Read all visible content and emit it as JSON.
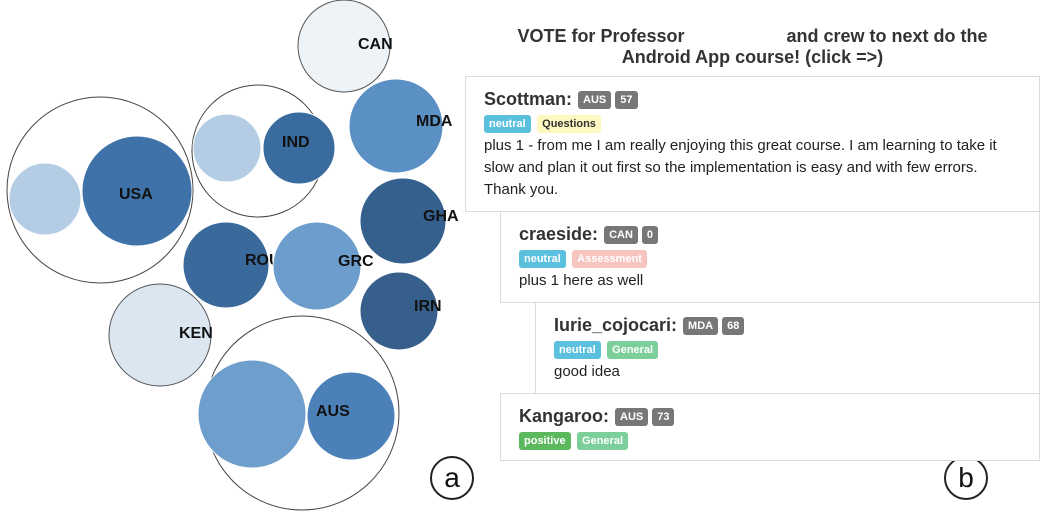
{
  "bubbles": {
    "groups": [
      {
        "label": "USA",
        "members": [
          {
            "color": "#b5cde4",
            "label": ""
          },
          {
            "color": "#3f72a8",
            "label": "USA"
          }
        ]
      },
      {
        "label": "IND",
        "members": [
          {
            "color": "#b5cde4",
            "label": ""
          },
          {
            "color": "#3a6b9f",
            "label": "IND"
          }
        ]
      },
      {
        "label": "AUS",
        "members": [
          {
            "color": "#6e9ecb",
            "label": ""
          },
          {
            "color": "#4c80b8",
            "label": "AUS"
          }
        ]
      },
      {
        "label": "CAN",
        "members": [
          {
            "color": "#eef3f8",
            "label": "CAN"
          }
        ]
      },
      {
        "label": "MDA",
        "members": [
          {
            "color": "#5b90c4",
            "label": "MDA"
          }
        ]
      },
      {
        "label": "GHA",
        "members": [
          {
            "color": "#355f8d",
            "label": "GHA"
          }
        ]
      },
      {
        "label": "ROU",
        "members": [
          {
            "color": "#3a6a9c",
            "label": "ROU"
          }
        ]
      },
      {
        "label": "GRC",
        "members": [
          {
            "color": "#6c9dcc",
            "label": "GRC"
          }
        ]
      },
      {
        "label": "IRN",
        "members": [
          {
            "color": "#365f8c",
            "label": "IRN"
          }
        ]
      },
      {
        "label": "KEN",
        "members": [
          {
            "color": "#dbe6f1",
            "label": "KEN"
          }
        ]
      }
    ]
  },
  "panel_labels": {
    "a": "a",
    "b": "b"
  },
  "thread": {
    "title_part1": "VOTE for Professor",
    "title_part2": "and crew to next do the",
    "title_line2": "Android App course! (click =>)",
    "posts": [
      {
        "author": "Scottman:",
        "country": "AUS",
        "count": "57",
        "sentiment": "neutral",
        "category": "Questions",
        "text": "plus 1 - from me I am really enjoying this great course. I am learning to take it slow and plan it out first so the implementation is easy and with few errors. Thank you."
      },
      {
        "author": "craeside:",
        "country": "CAN",
        "count": "0",
        "sentiment": "neutral",
        "category": "Assessment",
        "text": "plus 1 here as well"
      },
      {
        "author": "Iurie_cojocari:",
        "country": "MDA",
        "count": "68",
        "sentiment": "neutral",
        "category": "General",
        "text": "good idea"
      },
      {
        "author": "Kangaroo:",
        "country": "AUS",
        "count": "73",
        "sentiment": "positive",
        "category": "General",
        "text": ""
      }
    ]
  }
}
